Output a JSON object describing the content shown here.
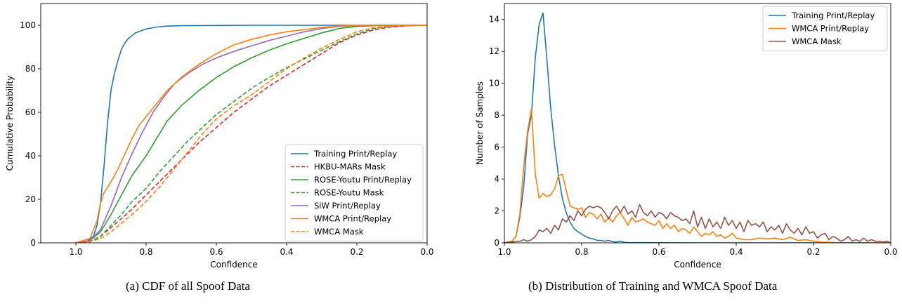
{
  "chart_data": [
    {
      "type": "line",
      "xlabel": "Confidence",
      "ylabel": "Cumulative Probability",
      "xlim": [
        1.1,
        0.0
      ],
      "ylim": [
        0,
        110
      ],
      "x_reversed": true,
      "xticks": [
        "1.0",
        "0.8",
        "0.6",
        "0.4",
        "0.2",
        "0.0"
      ],
      "xtick_values": [
        1.0,
        0.8,
        0.6,
        0.4,
        0.2,
        0.0
      ],
      "yticks": [
        "0",
        "20",
        "40",
        "60",
        "80",
        "100"
      ],
      "ytick_values": [
        0,
        20,
        40,
        60,
        80,
        100
      ],
      "grid": false,
      "legend_position": "lower-right",
      "series": [
        {
          "name": "Training Print/Replay",
          "color": "#1f77b4",
          "dash": "solid",
          "x": [
            1.0,
            0.97,
            0.95,
            0.94,
            0.93,
            0.92,
            0.91,
            0.9,
            0.89,
            0.88,
            0.87,
            0.86,
            0.85,
            0.83,
            0.8,
            0.77,
            0.74,
            0.7,
            0.6,
            0.5,
            0.4,
            0.3,
            0.2,
            0.0
          ],
          "y": [
            0,
            0.5,
            3,
            8,
            18,
            35,
            55,
            70,
            78,
            84,
            89,
            92,
            94,
            96.5,
            98.3,
            99.2,
            99.6,
            99.8,
            99.9,
            100,
            100,
            100,
            100,
            100
          ]
        },
        {
          "name": "HKBU-MARs Mask",
          "color": "#d62728",
          "dash": "dashed",
          "x": [
            1.0,
            0.96,
            0.93,
            0.9,
            0.85,
            0.8,
            0.75,
            0.7,
            0.65,
            0.6,
            0.55,
            0.5,
            0.45,
            0.4,
            0.35,
            0.3,
            0.25,
            0.2,
            0.15,
            0.1,
            0.05,
            0.0
          ],
          "y": [
            0,
            0.5,
            3,
            7,
            14,
            22,
            30,
            38,
            46,
            53,
            60,
            66,
            72,
            77,
            82,
            87,
            92,
            95.5,
            98,
            99.3,
            99.8,
            100
          ]
        },
        {
          "name": "ROSE-Youtu Print/Replay",
          "color": "#2ca02c",
          "dash": "solid",
          "x": [
            1.0,
            0.96,
            0.93,
            0.9,
            0.87,
            0.84,
            0.8,
            0.77,
            0.74,
            0.7,
            0.65,
            0.6,
            0.55,
            0.5,
            0.45,
            0.4,
            0.35,
            0.3,
            0.25,
            0.2,
            0.15,
            0.1,
            0.0
          ],
          "y": [
            0,
            1,
            5,
            13,
            22,
            31,
            40,
            48,
            56,
            63,
            70,
            76,
            81,
            85,
            88.5,
            91.5,
            94,
            96.5,
            98.5,
            99.5,
            99.8,
            100,
            100
          ]
        },
        {
          "name": "ROSE-Youtu Mask",
          "color": "#2ca02c",
          "dash": "dashed",
          "x": [
            1.0,
            0.96,
            0.93,
            0.9,
            0.87,
            0.84,
            0.8,
            0.76,
            0.72,
            0.68,
            0.64,
            0.6,
            0.55,
            0.5,
            0.45,
            0.4,
            0.35,
            0.3,
            0.25,
            0.2,
            0.15,
            0.1,
            0.0
          ],
          "y": [
            0,
            0.5,
            3,
            8,
            13,
            19,
            25,
            33,
            40,
            47,
            53,
            59,
            65,
            71,
            76,
            80.5,
            84.5,
            88.5,
            92.5,
            96,
            98.5,
            99.6,
            100
          ]
        },
        {
          "name": "SiW Print/Replay",
          "color": "#9467bd",
          "dash": "solid",
          "x": [
            1.0,
            0.96,
            0.93,
            0.9,
            0.87,
            0.84,
            0.81,
            0.78,
            0.75,
            0.72,
            0.68,
            0.64,
            0.6,
            0.55,
            0.5,
            0.45,
            0.4,
            0.35,
            0.3,
            0.25,
            0.2,
            0.15,
            0.0
          ],
          "y": [
            0,
            1,
            6,
            17,
            30,
            41,
            51,
            60,
            67,
            73,
            78,
            82,
            85,
            88,
            90.5,
            93,
            95,
            97,
            98.5,
            99.5,
            99.8,
            100,
            100
          ]
        },
        {
          "name": "WMCA Print/Replay",
          "color": "#ff7f0e",
          "dash": "solid",
          "x": [
            1.0,
            0.96,
            0.94,
            0.93,
            0.92,
            0.9,
            0.88,
            0.86,
            0.84,
            0.82,
            0.8,
            0.77,
            0.74,
            0.7,
            0.65,
            0.6,
            0.55,
            0.5,
            0.45,
            0.4,
            0.35,
            0.3,
            0.25,
            0.2,
            0.0
          ],
          "y": [
            0,
            2,
            10,
            18,
            23,
            28,
            34,
            41,
            48,
            54,
            58,
            64,
            70,
            76,
            82,
            87,
            91,
            93.5,
            95.5,
            97,
            98,
            99,
            99.6,
            100,
            100
          ]
        },
        {
          "name": "WMCA Mask",
          "color": "#ff7f0e",
          "dash": "dashed",
          "x": [
            1.0,
            0.96,
            0.93,
            0.9,
            0.87,
            0.84,
            0.8,
            0.76,
            0.72,
            0.68,
            0.64,
            0.6,
            0.55,
            0.5,
            0.45,
            0.4,
            0.35,
            0.3,
            0.25,
            0.2,
            0.15,
            0.1,
            0.0
          ],
          "y": [
            0,
            0.5,
            2,
            5,
            9,
            13,
            19,
            26,
            34,
            42,
            50,
            57,
            63,
            68,
            74,
            80,
            85,
            89.5,
            93.5,
            97,
            99,
            99.8,
            100
          ]
        }
      ]
    },
    {
      "type": "line",
      "xlabel": "Confidence",
      "ylabel": "Number of Samples",
      "xlim": [
        1.0,
        0.0
      ],
      "ylim": [
        0,
        15
      ],
      "x_reversed": true,
      "xticks": [
        "1.0",
        "0.8",
        "0.6",
        "0.4",
        "0.2",
        "0.0"
      ],
      "xtick_values": [
        1.0,
        0.8,
        0.6,
        0.4,
        0.2,
        0.0
      ],
      "yticks": [
        "0",
        "2",
        "4",
        "6",
        "8",
        "10",
        "12",
        "14"
      ],
      "ytick_values": [
        0,
        2,
        4,
        6,
        8,
        10,
        12,
        14
      ],
      "grid": false,
      "legend_position": "top-right",
      "series": [
        {
          "name": "Training Print/Replay",
          "color": "#1f77b4",
          "dash": "solid",
          "x": [
            1.0,
            0.98,
            0.97,
            0.96,
            0.95,
            0.94,
            0.93,
            0.92,
            0.91,
            0.9,
            0.89,
            0.88,
            0.87,
            0.86,
            0.85,
            0.84,
            0.83,
            0.82,
            0.81,
            0.8,
            0.79,
            0.78,
            0.77,
            0.76,
            0.75,
            0.74,
            0.73,
            0.72,
            0.71,
            0.7,
            0.69,
            0.68,
            0.6,
            0.5,
            0.0
          ],
          "y": [
            0,
            0.1,
            0.4,
            1.6,
            3.5,
            6.8,
            8.0,
            11.6,
            13.7,
            14.4,
            11.5,
            8.4,
            6.1,
            4.2,
            2.8,
            1.9,
            1.3,
            0.9,
            0.7,
            0.55,
            0.4,
            0.3,
            0.25,
            0.15,
            0.15,
            0.1,
            0.15,
            0.08,
            0.05,
            0.1,
            0.03,
            0.02,
            0.01,
            0,
            0
          ]
        },
        {
          "name": "WMCA Print/Replay",
          "color": "#ff7f0e",
          "dash": "solid",
          "x": [
            1.0,
            0.98,
            0.97,
            0.96,
            0.95,
            0.94,
            0.93,
            0.92,
            0.91,
            0.9,
            0.89,
            0.88,
            0.87,
            0.86,
            0.85,
            0.84,
            0.83,
            0.82,
            0.81,
            0.8,
            0.79,
            0.78,
            0.77,
            0.76,
            0.75,
            0.74,
            0.73,
            0.72,
            0.71,
            0.7,
            0.69,
            0.68,
            0.67,
            0.66,
            0.65,
            0.64,
            0.63,
            0.62,
            0.61,
            0.6,
            0.59,
            0.58,
            0.57,
            0.56,
            0.55,
            0.54,
            0.53,
            0.52,
            0.51,
            0.5,
            0.49,
            0.48,
            0.47,
            0.46,
            0.45,
            0.44,
            0.43,
            0.42,
            0.41,
            0.4,
            0.38,
            0.36,
            0.34,
            0.32,
            0.3,
            0.28,
            0.26,
            0.24,
            0.22,
            0.2,
            0.18,
            0.16,
            0.14,
            0.0
          ],
          "y": [
            0,
            0.1,
            0.4,
            1.8,
            4.8,
            7.0,
            8.4,
            4.3,
            2.8,
            3.1,
            2.9,
            3.0,
            3.4,
            4.2,
            4.3,
            3.3,
            2.3,
            2.2,
            2.1,
            2.2,
            1.6,
            1.9,
            1.8,
            1.5,
            1.8,
            1.3,
            1.6,
            1.3,
            1.7,
            1.9,
            1.5,
            1.1,
            1.6,
            1.3,
            1.4,
            1.5,
            1.3,
            1.2,
            1.1,
            1.4,
            0.9,
            1.2,
            0.9,
            1.1,
            0.7,
            0.9,
            0.8,
            0.6,
            1.0,
            0.7,
            0.4,
            0.6,
            0.5,
            0.7,
            0.4,
            0.5,
            0.3,
            0.4,
            0.6,
            0.3,
            0.2,
            0.2,
            0.3,
            0.25,
            0.3,
            0.2,
            0.35,
            0.15,
            0.2,
            0.1,
            0.05,
            0.03,
            0.01,
            0
          ]
        },
        {
          "name": "WMCA Mask",
          "color": "#8c564b",
          "dash": "solid",
          "x": [
            1.0,
            0.96,
            0.95,
            0.94,
            0.93,
            0.92,
            0.91,
            0.9,
            0.89,
            0.88,
            0.87,
            0.86,
            0.85,
            0.84,
            0.83,
            0.82,
            0.81,
            0.8,
            0.79,
            0.78,
            0.77,
            0.76,
            0.75,
            0.74,
            0.73,
            0.72,
            0.71,
            0.7,
            0.69,
            0.68,
            0.67,
            0.66,
            0.65,
            0.64,
            0.63,
            0.62,
            0.61,
            0.6,
            0.59,
            0.58,
            0.57,
            0.56,
            0.55,
            0.54,
            0.53,
            0.52,
            0.51,
            0.5,
            0.49,
            0.48,
            0.47,
            0.46,
            0.45,
            0.44,
            0.43,
            0.42,
            0.41,
            0.4,
            0.39,
            0.38,
            0.37,
            0.36,
            0.35,
            0.34,
            0.33,
            0.32,
            0.31,
            0.3,
            0.29,
            0.28,
            0.27,
            0.26,
            0.25,
            0.24,
            0.23,
            0.22,
            0.21,
            0.2,
            0.19,
            0.18,
            0.17,
            0.16,
            0.15,
            0.14,
            0.13,
            0.12,
            0.11,
            0.1,
            0.09,
            0.08,
            0.07,
            0.06,
            0.05,
            0.04,
            0.03,
            0.02,
            0.01,
            0.0
          ],
          "y": [
            0,
            0.1,
            0.2,
            0.1,
            0.2,
            0.4,
            0.8,
            0.7,
            0.9,
            0.6,
            1.1,
            0.8,
            1.5,
            1.3,
            1.7,
            1.4,
            2.0,
            1.7,
            2.1,
            2.3,
            2.2,
            2.3,
            2.2,
            1.9,
            1.5,
            2.0,
            2.3,
            1.9,
            2.3,
            1.8,
            2.0,
            1.6,
            2.4,
            1.9,
            1.7,
            2.0,
            1.6,
            1.9,
            1.8,
            1.5,
            1.9,
            1.7,
            1.6,
            1.4,
            1.5,
            1.2,
            2.0,
            1.0,
            1.6,
            0.9,
            1.5,
            1.0,
            1.3,
            0.9,
            1.6,
            1.1,
            1.4,
            0.9,
            1.3,
            0.7,
            1.4,
            1.1,
            1.2,
            1.0,
            1.3,
            0.7,
            1.0,
            0.8,
            1.1,
            0.6,
            1.2,
            0.8,
            0.6,
            0.9,
            0.5,
            1.0,
            0.6,
            0.7,
            0.3,
            0.5,
            0.6,
            0.2,
            0.4,
            0.3,
            0.1,
            0.2,
            0.4,
            0.1,
            0.2,
            0.1,
            0.3,
            0.1,
            0.2,
            0.1,
            0.1,
            0.05,
            0.1,
            0
          ]
        }
      ]
    }
  ],
  "captions": {
    "a": "(a) CDF of all Spoof Data",
    "b": "(b) Distribution of Training and WMCA Spoof Data"
  }
}
